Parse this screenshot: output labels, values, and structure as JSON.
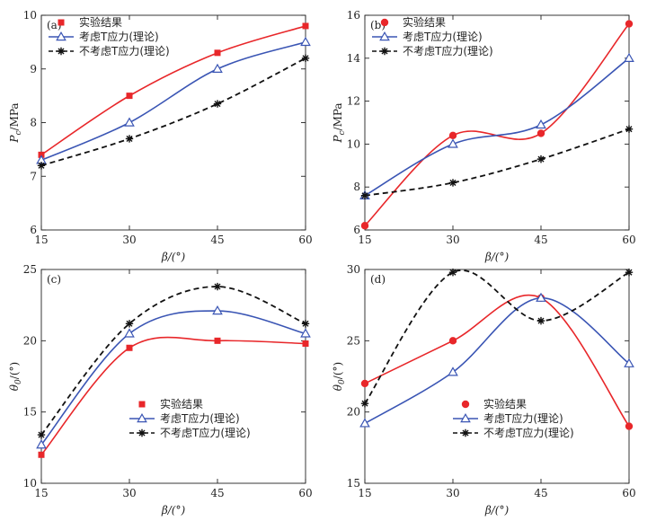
{
  "chart_data": [
    {
      "panel": "(a)",
      "type": "line",
      "x": [
        15,
        30,
        45,
        60
      ],
      "xlabel": "β/(°)",
      "ylabel": "Pc/MPa",
      "ylabel_main": "P",
      "ylabel_sub": "c",
      "ylabel_rest": "/MPa",
      "xlim": [
        15,
        60
      ],
      "ylim": [
        6,
        10
      ],
      "xticks": [
        "15",
        "30",
        "45",
        "60"
      ],
      "yticks": [
        "6",
        "7",
        "8",
        "9",
        "10"
      ],
      "legend_position": "top-left",
      "series": [
        {
          "name": "实验结果",
          "values": [
            7.4,
            8.5,
            9.3,
            9.8
          ],
          "color": "#e8272a",
          "marker": "square",
          "dash": "none"
        },
        {
          "name": "考虑T应力(理论)",
          "values": [
            7.3,
            8.0,
            9.0,
            9.5
          ],
          "color": "#3a55b4",
          "marker": "triangle",
          "dash": "none"
        },
        {
          "name": "不考虑T应力(理论)",
          "values": [
            7.2,
            7.7,
            8.35,
            9.2
          ],
          "color": "#111111",
          "marker": "star",
          "dash": "dashed"
        }
      ]
    },
    {
      "panel": "(b)",
      "type": "line",
      "x": [
        15,
        30,
        45,
        60
      ],
      "xlabel": "β/(°)",
      "ylabel": "Pc/MPa",
      "ylabel_main": "P",
      "ylabel_sub": "c",
      "ylabel_rest": "/MPa",
      "xlim": [
        15,
        60
      ],
      "ylim": [
        6,
        16
      ],
      "xticks": [
        "15",
        "30",
        "45",
        "60"
      ],
      "yticks": [
        "6",
        "8",
        "10",
        "12",
        "14",
        "16"
      ],
      "legend_position": "top-left",
      "series": [
        {
          "name": "实验结果",
          "values": [
            6.2,
            10.4,
            10.5,
            15.6
          ],
          "color": "#e8272a",
          "marker": "circle",
          "dash": "none"
        },
        {
          "name": "考虑T应力(理论)",
          "values": [
            7.6,
            10.0,
            10.9,
            14.0
          ],
          "color": "#3a55b4",
          "marker": "triangle",
          "dash": "none"
        },
        {
          "name": "不考虑T应力(理论)",
          "values": [
            7.6,
            8.2,
            9.3,
            10.7
          ],
          "color": "#111111",
          "marker": "star",
          "dash": "dashed"
        }
      ]
    },
    {
      "panel": "(c)",
      "type": "line",
      "x": [
        15,
        30,
        45,
        60
      ],
      "xlabel": "β/(°)",
      "ylabel": "θ0/(°)",
      "ylabel_main": "θ",
      "ylabel_sub": "0",
      "ylabel_rest": "/(°)",
      "xlim": [
        15,
        60
      ],
      "ylim": [
        10,
        25
      ],
      "xticks": [
        "15",
        "30",
        "45",
        "60"
      ],
      "yticks": [
        "10",
        "15",
        "20",
        "25"
      ],
      "legend_position": "bottom-center",
      "series": [
        {
          "name": "实验结果",
          "values": [
            12.0,
            19.5,
            20.0,
            19.8
          ],
          "color": "#e8272a",
          "marker": "square",
          "dash": "none"
        },
        {
          "name": "考虑T应力(理论)",
          "values": [
            12.7,
            20.5,
            22.1,
            20.5
          ],
          "color": "#3a55b4",
          "marker": "triangle",
          "dash": "none"
        },
        {
          "name": "不考虑T应力(理论)",
          "values": [
            13.4,
            21.2,
            23.8,
            21.2
          ],
          "color": "#111111",
          "marker": "star",
          "dash": "dashed"
        }
      ]
    },
    {
      "panel": "(d)",
      "type": "line",
      "x": [
        15,
        30,
        45,
        60
      ],
      "xlabel": "β/(°)",
      "ylabel": "θ0/(°)",
      "ylabel_main": "θ",
      "ylabel_sub": "0",
      "ylabel_rest": "/(°)",
      "xlim": [
        15,
        60
      ],
      "ylim": [
        15,
        30
      ],
      "xticks": [
        "15",
        "30",
        "45",
        "60"
      ],
      "yticks": [
        "15",
        "20",
        "25",
        "30"
      ],
      "legend_position": "bottom-center",
      "series": [
        {
          "name": "实验结果",
          "values": [
            22.0,
            25.0,
            28.0,
            19.0
          ],
          "color": "#e8272a",
          "marker": "circle",
          "dash": "none"
        },
        {
          "name": "考虑T应力(理论)",
          "values": [
            19.2,
            22.8,
            28.0,
            23.4
          ],
          "color": "#3a55b4",
          "marker": "triangle",
          "dash": "none"
        },
        {
          "name": "不考虑T应力(理论)",
          "values": [
            20.6,
            29.8,
            26.4,
            29.8
          ],
          "color": "#111111",
          "marker": "star",
          "dash": "dashed"
        }
      ]
    }
  ]
}
